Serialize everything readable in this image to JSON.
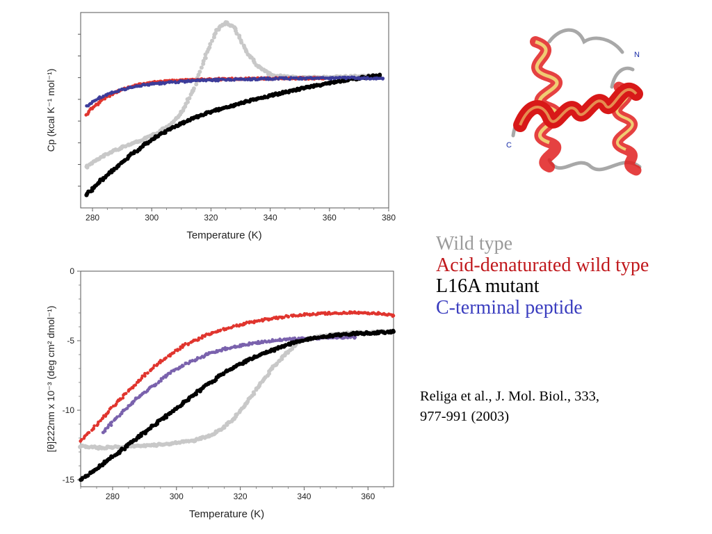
{
  "chart_data": [
    {
      "type": "scatter",
      "id": "cp",
      "title": "",
      "xlabel": "Temperature (K)",
      "ylabel": "Cp (kcal K⁻¹ mol⁻¹)",
      "xlim": [
        276,
        380
      ],
      "ylim": [
        0,
        9
      ],
      "x_ticks": [
        280,
        300,
        320,
        340,
        360,
        380
      ],
      "y_tick_labels": false,
      "grid": false,
      "series": [
        {
          "name": "Wild type",
          "color": "#c8c8c8",
          "x": [
            278,
            282,
            286,
            290,
            294,
            298,
            302,
            306,
            310,
            314,
            318,
            322,
            325,
            328,
            332,
            336,
            340,
            344,
            350,
            356,
            362,
            368,
            372,
            375
          ],
          "y": [
            1.9,
            2.25,
            2.55,
            2.8,
            3.0,
            3.2,
            3.45,
            3.8,
            4.4,
            5.4,
            6.9,
            8.2,
            8.55,
            8.3,
            7.2,
            6.5,
            6.15,
            6.05,
            6.0,
            6.0,
            6.02,
            6.05,
            6.07,
            6.08
          ]
        },
        {
          "name": "Acid-denaturated wild type",
          "color": "#e0352e",
          "x": [
            278,
            280,
            284,
            288,
            292,
            296,
            300,
            305,
            310,
            315,
            320,
            326,
            332,
            340,
            348,
            354,
            358
          ],
          "y": [
            4.3,
            4.6,
            5.05,
            5.35,
            5.55,
            5.68,
            5.77,
            5.83,
            5.88,
            5.9,
            5.93,
            5.94,
            5.95,
            5.96,
            5.97,
            5.97,
            5.98
          ]
        },
        {
          "name": "L16A mutant",
          "color": "#000000",
          "x": [
            278,
            282,
            286,
            290,
            294,
            298,
            302,
            306,
            310,
            315,
            320,
            325,
            330,
            335,
            340,
            345,
            350,
            355,
            360,
            365,
            370,
            375,
            377
          ],
          "y": [
            0.6,
            1.15,
            1.65,
            2.1,
            2.55,
            2.95,
            3.3,
            3.62,
            3.9,
            4.18,
            4.42,
            4.63,
            4.82,
            5.0,
            5.17,
            5.33,
            5.48,
            5.62,
            5.75,
            5.88,
            5.98,
            6.07,
            6.1
          ]
        },
        {
          "name": "C-terminal peptide",
          "color": "#3c3c9a",
          "x": [
            278,
            282,
            286,
            290,
            295,
            300,
            306,
            312,
            320,
            330,
            340,
            350,
            360,
            370,
            378
          ],
          "y": [
            4.7,
            5.05,
            5.28,
            5.45,
            5.6,
            5.7,
            5.78,
            5.84,
            5.88,
            5.92,
            5.95,
            5.97,
            5.98,
            5.99,
            5.94
          ]
        }
      ]
    },
    {
      "type": "scatter",
      "id": "cd",
      "title": "",
      "xlabel": "Temperature (K)",
      "ylabel": "[θ]222nm x 10⁻³ (deg cm² dmol⁻¹)",
      "xlim": [
        270,
        368
      ],
      "ylim": [
        -15.5,
        0
      ],
      "x_ticks": [
        280,
        300,
        320,
        340,
        360
      ],
      "y_ticks": [
        0,
        -5,
        -10,
        -15
      ],
      "grid": false,
      "series": [
        {
          "name": "Wild type",
          "color": "#c8c8c8",
          "x": [
            270,
            276,
            282,
            288,
            294,
            300,
            306,
            310,
            314,
            318,
            322,
            326,
            330,
            334,
            338,
            342,
            346,
            350,
            356,
            362,
            366
          ],
          "y": [
            -12.6,
            -12.7,
            -12.65,
            -12.55,
            -12.5,
            -12.35,
            -12.15,
            -11.85,
            -11.4,
            -10.6,
            -9.5,
            -8.2,
            -7.0,
            -6.0,
            -5.1,
            -4.8,
            -4.65,
            -4.55,
            -4.45,
            -4.4,
            -4.35
          ]
        },
        {
          "name": "Acid-denaturated wild type",
          "color": "#e0352e",
          "x": [
            270,
            274,
            278,
            282,
            286,
            290,
            294,
            298,
            302,
            306,
            310,
            315,
            320,
            325,
            330,
            335,
            340,
            345,
            350,
            355,
            360,
            365,
            368
          ],
          "y": [
            -12.2,
            -11.3,
            -10.3,
            -9.3,
            -8.4,
            -7.5,
            -6.7,
            -6.0,
            -5.4,
            -4.95,
            -4.55,
            -4.15,
            -3.85,
            -3.6,
            -3.4,
            -3.25,
            -3.12,
            -3.05,
            -3.0,
            -2.98,
            -3.0,
            -3.05,
            -3.2
          ]
        },
        {
          "name": "C-terminal peptide",
          "color": "#7a62ad",
          "x": [
            277,
            281,
            285,
            289,
            293,
            297,
            301,
            305,
            310,
            315,
            320,
            325,
            330,
            335,
            340,
            345,
            350,
            356
          ],
          "y": [
            -11.6,
            -10.6,
            -9.7,
            -8.9,
            -8.2,
            -7.5,
            -6.9,
            -6.45,
            -5.95,
            -5.6,
            -5.35,
            -5.15,
            -5.0,
            -4.9,
            -4.85,
            -4.8,
            -4.75,
            -4.75
          ]
        },
        {
          "name": "L16A mutant",
          "color": "#000000",
          "x": [
            270,
            274,
            278,
            282,
            286,
            290,
            294,
            298,
            302,
            306,
            310,
            314,
            318,
            322,
            326,
            330,
            334,
            338,
            342,
            346,
            350,
            355,
            360,
            365,
            368
          ],
          "y": [
            -15.0,
            -14.4,
            -13.7,
            -13.0,
            -12.3,
            -11.6,
            -10.9,
            -10.2,
            -9.5,
            -8.8,
            -8.1,
            -7.45,
            -6.9,
            -6.45,
            -6.05,
            -5.7,
            -5.35,
            -5.05,
            -4.85,
            -4.7,
            -4.6,
            -4.5,
            -4.45,
            -4.4,
            -4.35
          ]
        }
      ]
    }
  ],
  "legend": {
    "items": [
      {
        "label": "Wild type",
        "color": "#9a9a9a"
      },
      {
        "label": "Acid-denaturated wild type",
        "color": "#c0171b"
      },
      {
        "label": "L16A mutant",
        "color": "#000000"
      },
      {
        "label": "C-terminal peptide",
        "color": "#3a3dbf"
      }
    ]
  },
  "citation": {
    "line1": "Religa et al., J. Mol. Biol., 333,",
    "line2": "977-991 (2003)"
  },
  "structure": {
    "n_label": "N",
    "c_label": "C",
    "label_color": "#1a2ea8",
    "helix_color": "#e02020",
    "helix_inner_color": "#f2ef80",
    "loop_color": "#a8a8a8"
  }
}
